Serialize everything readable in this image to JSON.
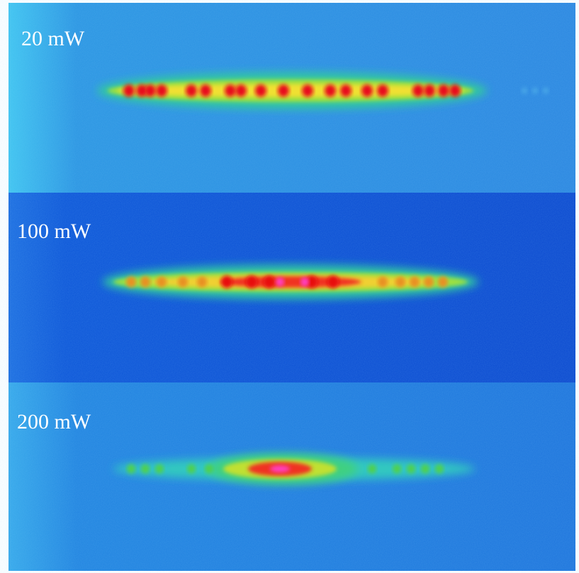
{
  "panels": [
    {
      "label": "20 mW"
    },
    {
      "label": "100 mW"
    },
    {
      "label": "200 mW"
    }
  ]
}
